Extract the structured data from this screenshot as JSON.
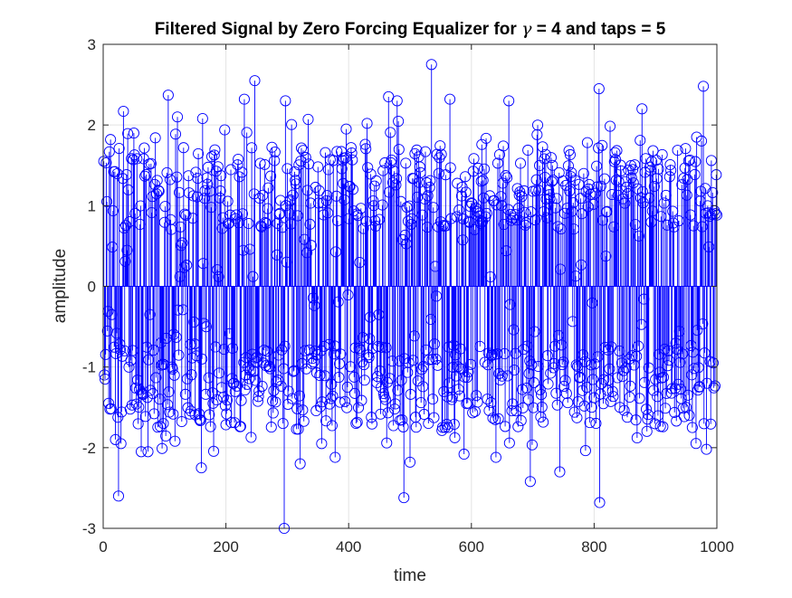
{
  "chart_data": {
    "type": "stem",
    "title": "Filtered Signal by Zero Forcing Equalizer for γ = 4 and taps = 5",
    "title_parts": {
      "before": "Filtered Signal by Zero Forcing Equalizer for ",
      "symbol": "γ",
      "after": " = 4 and taps = 5"
    },
    "xlabel": "time",
    "ylabel": "amplitude",
    "xlim": [
      0,
      1000
    ],
    "ylim": [
      -3,
      3
    ],
    "xticks": [
      0,
      200,
      400,
      600,
      800,
      1000
    ],
    "xtick_labels": [
      "0",
      "200",
      "400",
      "600",
      "800",
      "1000"
    ],
    "yticks": [
      -3,
      -2,
      -1,
      0,
      1,
      2,
      3
    ],
    "ytick_labels": [
      "-3",
      "-2",
      "-1",
      "0",
      "1",
      "2",
      "3"
    ],
    "grid": true,
    "color": "#0000ff",
    "marker": "open-circle",
    "n_points": 1000,
    "x_start": 1,
    "x_step": 1,
    "sample_values": [
      {
        "x": 1,
        "y": 1.55
      },
      {
        "x": 3,
        "y": -1.15
      },
      {
        "x": 6,
        "y": 1.05
      },
      {
        "x": 9,
        "y": -1.45
      },
      {
        "x": 12,
        "y": 1.82
      },
      {
        "x": 14,
        "y": -0.35
      },
      {
        "x": 17,
        "y": 1.42
      },
      {
        "x": 20,
        "y": -1.9
      },
      {
        "x": 25,
        "y": -2.6
      },
      {
        "x": 29,
        "y": -1.95
      },
      {
        "x": 33,
        "y": 2.17
      },
      {
        "x": 50,
        "y": 1.9
      },
      {
        "x": 62,
        "y": -2.05
      },
      {
        "x": 73,
        "y": -2.05
      },
      {
        "x": 106,
        "y": 2.37
      },
      {
        "x": 117,
        "y": -1.92
      },
      {
        "x": 121,
        "y": 2.1
      },
      {
        "x": 160,
        "y": -2.25
      },
      {
        "x": 162,
        "y": 2.08
      },
      {
        "x": 230,
        "y": 2.32
      },
      {
        "x": 247,
        "y": 2.55
      },
      {
        "x": 295,
        "y": -3.0
      },
      {
        "x": 297,
        "y": 2.3
      },
      {
        "x": 321,
        "y": -2.2
      },
      {
        "x": 334,
        "y": 2.07
      },
      {
        "x": 356,
        "y": -1.95
      },
      {
        "x": 378,
        "y": -2.12
      },
      {
        "x": 396,
        "y": 1.95
      },
      {
        "x": 430,
        "y": 2.02
      },
      {
        "x": 465,
        "y": 2.35
      },
      {
        "x": 479,
        "y": 2.3
      },
      {
        "x": 490,
        "y": -2.62
      },
      {
        "x": 500,
        "y": -2.18
      },
      {
        "x": 535,
        "y": 2.75
      },
      {
        "x": 565,
        "y": 2.32
      },
      {
        "x": 588,
        "y": -2.08
      },
      {
        "x": 640,
        "y": -2.12
      },
      {
        "x": 661,
        "y": 2.3
      },
      {
        "x": 696,
        "y": -2.42
      },
      {
        "x": 707,
        "y": 1.88
      },
      {
        "x": 744,
        "y": -2.3
      },
      {
        "x": 808,
        "y": 2.45
      },
      {
        "x": 809,
        "y": -2.68
      },
      {
        "x": 878,
        "y": 2.2
      },
      {
        "x": 960,
        "y": -1.75
      },
      {
        "x": 967,
        "y": 1.85
      },
      {
        "x": 978,
        "y": 2.48
      },
      {
        "x": 983,
        "y": -2.02
      }
    ]
  }
}
